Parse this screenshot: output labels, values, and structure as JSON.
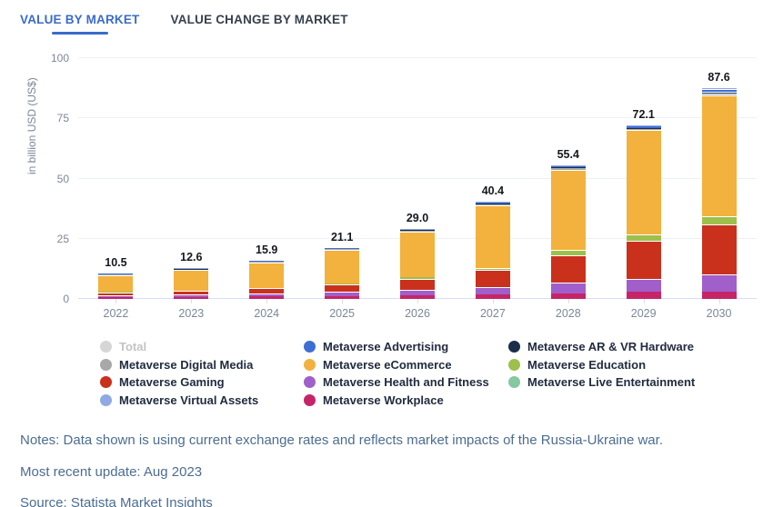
{
  "tabs": [
    {
      "label": "VALUE BY MARKET",
      "active": true
    },
    {
      "label": "VALUE CHANGE BY MARKET",
      "active": false
    }
  ],
  "chart_data": {
    "type": "bar",
    "stacked": true,
    "ylabel": "in billion USD (US$)",
    "ylim": [
      0,
      100
    ],
    "yticks": [
      0,
      25,
      50,
      75,
      100
    ],
    "grid": true,
    "legend_position": "bottom",
    "categories": [
      "2022",
      "2023",
      "2024",
      "2025",
      "2026",
      "2027",
      "2028",
      "2029",
      "2030"
    ],
    "totals": [
      10.5,
      12.6,
      15.9,
      21.1,
      29.0,
      40.4,
      55.4,
      72.1,
      87.6
    ],
    "total_labels": [
      "10.5",
      "12.6",
      "15.9",
      "21.1",
      "29.0",
      "40.4",
      "55.4",
      "72.1",
      "87.6"
    ],
    "series": [
      {
        "name": "Metaverse Workplace",
        "color": "#c52568",
        "values": [
          0.8,
          0.9,
          1.1,
          1.3,
          1.6,
          1.9,
          2.2,
          2.9,
          3.1
        ]
      },
      {
        "name": "Metaverse Health and Fitness",
        "color": "#a05fca",
        "values": [
          0.9,
          1.0,
          1.3,
          1.7,
          2.3,
          3.2,
          4.6,
          5.6,
          7.2
        ]
      },
      {
        "name": "Metaverse Gaming",
        "color": "#c9311d",
        "values": [
          1.1,
          1.5,
          2.0,
          2.9,
          4.4,
          6.8,
          11.5,
          15.8,
          20.8
        ]
      },
      {
        "name": "Metaverse Education",
        "color": "#9dc04c",
        "values": [
          0.15,
          0.2,
          0.3,
          0.4,
          0.7,
          1.1,
          1.9,
          2.5,
          3.3
        ]
      },
      {
        "name": "Metaverse eCommerce",
        "color": "#f2b23d",
        "values": [
          7.0,
          8.4,
          10.5,
          14.0,
          19.0,
          26.0,
          33.5,
          43.3,
          50.0
        ]
      },
      {
        "name": "Metaverse Digital Media",
        "color": "#a8a8a8",
        "values": [
          0.15,
          0.2,
          0.25,
          0.3,
          0.35,
          0.45,
          0.5,
          0.6,
          0.8
        ]
      },
      {
        "name": "Metaverse AR & VR Hardware",
        "color": "#1b2d49",
        "values": [
          0.1,
          0.1,
          0.15,
          0.15,
          0.2,
          0.3,
          0.5,
          0.4,
          0.8
        ]
      },
      {
        "name": "Metaverse Advertising",
        "color": "#3d6fd2",
        "values": [
          0.2,
          0.2,
          0.2,
          0.25,
          0.3,
          0.45,
          0.5,
          0.6,
          1.2
        ]
      },
      {
        "name": "Metaverse Virtual Assets",
        "color": "#8fa9e3",
        "values": [
          0.1,
          0.1,
          0.1,
          0.1,
          0.15,
          0.2,
          0.2,
          0.4,
          0.4
        ]
      },
      {
        "name": "Metaverse Live Entertainment",
        "color": "#87c7a2",
        "values": [
          0,
          0,
          0,
          0,
          0,
          0,
          0,
          0,
          0
        ]
      }
    ],
    "legend_columns": [
      [
        {
          "label": "Total",
          "color": "#d6d6d6",
          "disabled": true
        },
        {
          "label": "Metaverse Digital Media",
          "color": "#a8a8a8"
        },
        {
          "label": "Metaverse Gaming",
          "color": "#c9311d"
        },
        {
          "label": "Metaverse Virtual Assets",
          "color": "#8fa9e3"
        }
      ],
      [
        {
          "label": "Metaverse Advertising",
          "color": "#3d6fd2"
        },
        {
          "label": "Metaverse eCommerce",
          "color": "#f2b23d"
        },
        {
          "label": "Metaverse Health and Fitness",
          "color": "#a05fca"
        },
        {
          "label": "Metaverse Workplace",
          "color": "#c52568"
        }
      ],
      [
        {
          "label": "Metaverse AR & VR Hardware",
          "color": "#1b2d49"
        },
        {
          "label": "Metaverse Education",
          "color": "#9dc04c"
        },
        {
          "label": "Metaverse Live Entertainment",
          "color": "#87c7a2"
        }
      ]
    ]
  },
  "notes": {
    "line1": "Notes: Data shown is using current exchange rates and reflects market impacts of the Russia-Ukraine war.",
    "line2": "Most recent update: Aug 2023",
    "line3": "Source: Statista Market Insights"
  },
  "colors": {
    "accent_blue": "#3a6bcc",
    "notes_text": "#4b6d92",
    "axis_text": "#7b8698"
  }
}
